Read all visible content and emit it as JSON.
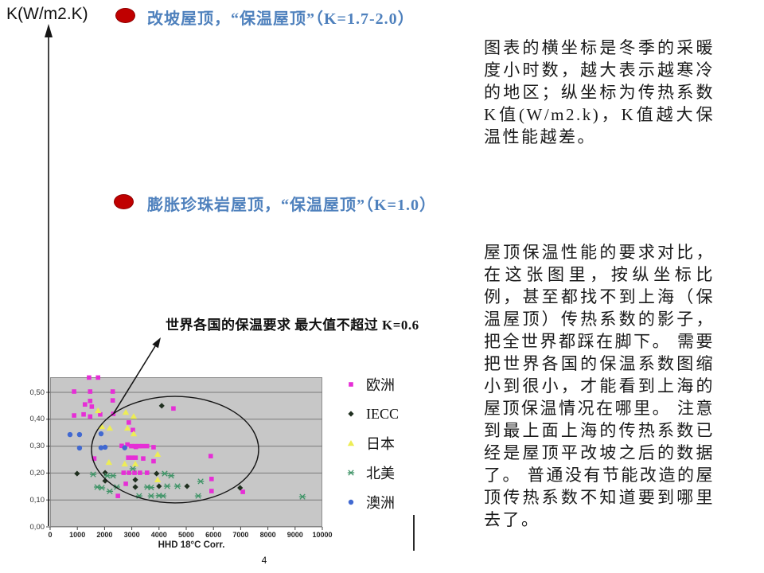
{
  "slide": {
    "page_number": "4",
    "y_axis_label": "K(W/m2.K)",
    "bullets": [
      {
        "text": "改坡屋顶，“保温屋顶”（K=1.7-2.0）",
        "k_value": "K=1.7-2.0"
      },
      {
        "text": "膨胀珍珠岩屋顶，“保温屋顶”（K=1.0）",
        "k_value": "K=1.0"
      }
    ],
    "right_column": {
      "paragraph1": "图表的横坐标是冬季的采暖度小时数，越大表示越寒冷的地区；纵坐标为传热系数K值(W/m2.k)，K值越大保温性能越差。",
      "paragraph2": "屋顶保温性能的要求对比，在这张图里，按纵坐标比例，甚至都找不到上海（保温屋顶）传热系数的影子，把全世界都踩在脚下。 需要把世界各国的保温系数图缩小到很小，才能看到上海的屋顶保温情况在哪里。 注意到最上面上海的传热系数已经是屋顶平改坡之后的数据了。 普通没有节能改造的屋顶传热系数不知道要到哪里去了。"
    },
    "colors": {
      "bullet_red": "#c00000",
      "heading_blue": "#4f81bd",
      "plot_background": "#c7c7c7",
      "gridline": "#7a7a7a"
    }
  },
  "chart_data": {
    "type": "scatter",
    "title": "",
    "xlabel": "HHD 18°C Corr.",
    "ylabel": "K(W/m2.K)",
    "xlim": [
      0,
      10000
    ],
    "ylim": [
      0.0,
      0.55
    ],
    "x_ticks": [
      0,
      1000,
      2000,
      3000,
      4000,
      5000,
      6000,
      7000,
      8000,
      9000,
      10000
    ],
    "y_tick_labels": [
      "0,00",
      "0,10",
      "0,20",
      "0,30",
      "0,40",
      "0,50"
    ],
    "grid": true,
    "legend_position": "right",
    "annotation_label": "世界各国的保温要求 最大值不超过 K=0.6",
    "annotations": [
      {
        "type": "ellipse",
        "center": [
          4590,
          0.287
        ],
        "rx": 3070,
        "ry": 0.198
      }
    ],
    "series": [
      {
        "name": "欧洲",
        "marker": "square",
        "color": "#e62ed6",
        "points": [
          [
            1430,
            0.555
          ],
          [
            1760,
            0.555
          ],
          [
            880,
            0.503
          ],
          [
            1470,
            0.503
          ],
          [
            2300,
            0.503
          ],
          [
            1280,
            0.455
          ],
          [
            1470,
            0.468
          ],
          [
            1530,
            0.447
          ],
          [
            2300,
            0.47
          ],
          [
            880,
            0.414
          ],
          [
            1230,
            0.418
          ],
          [
            1470,
            0.41
          ],
          [
            1840,
            0.418
          ],
          [
            2320,
            0.42
          ],
          [
            2890,
            0.388
          ],
          [
            3040,
            0.36
          ],
          [
            4530,
            0.44
          ],
          [
            2630,
            0.301
          ],
          [
            2840,
            0.306
          ],
          [
            2980,
            0.3
          ],
          [
            3120,
            0.3
          ],
          [
            3260,
            0.3
          ],
          [
            3400,
            0.3
          ],
          [
            3560,
            0.3
          ],
          [
            3150,
            0.297
          ],
          [
            3800,
            0.296
          ],
          [
            5900,
            0.263
          ],
          [
            1620,
            0.254
          ],
          [
            2870,
            0.257
          ],
          [
            3010,
            0.257
          ],
          [
            3140,
            0.257
          ],
          [
            3420,
            0.254
          ],
          [
            3800,
            0.244
          ],
          [
            2700,
            0.201
          ],
          [
            2900,
            0.201
          ],
          [
            3100,
            0.201
          ],
          [
            3300,
            0.201
          ],
          [
            3560,
            0.201
          ],
          [
            2780,
            0.16
          ],
          [
            2490,
            0.115
          ],
          [
            5930,
            0.178
          ],
          [
            5930,
            0.133
          ],
          [
            7080,
            0.13
          ]
        ]
      },
      {
        "name": "IECC",
        "marker": "diamond",
        "color": "#203020",
        "points": [
          [
            990,
            0.198
          ],
          [
            2020,
            0.201
          ],
          [
            2020,
            0.171
          ],
          [
            3130,
            0.175
          ],
          [
            3130,
            0.148
          ],
          [
            3910,
            0.198
          ],
          [
            4000,
            0.151
          ],
          [
            5030,
            0.151
          ],
          [
            6980,
            0.145
          ],
          [
            4100,
            0.45
          ]
        ]
      },
      {
        "name": "日本",
        "marker": "triangle",
        "color": "#eded55",
        "points": [
          [
            1760,
            0.432
          ],
          [
            2780,
            0.426
          ],
          [
            3070,
            0.411
          ],
          [
            1900,
            0.373
          ],
          [
            2190,
            0.367
          ],
          [
            2840,
            0.367
          ],
          [
            3070,
            0.346
          ],
          [
            3950,
            0.27
          ],
          [
            2160,
            0.24
          ],
          [
            2740,
            0.234
          ],
          [
            3130,
            0.234
          ],
          [
            3950,
            0.175
          ]
        ]
      },
      {
        "name": "北美",
        "marker": "x",
        "color": "#3f9467",
        "points": [
          [
            3040,
            0.216
          ],
          [
            1580,
            0.195
          ],
          [
            2100,
            0.19
          ],
          [
            2310,
            0.19
          ],
          [
            4210,
            0.198
          ],
          [
            4445,
            0.19
          ],
          [
            1730,
            0.148
          ],
          [
            1900,
            0.145
          ],
          [
            2450,
            0.148
          ],
          [
            3570,
            0.148
          ],
          [
            3710,
            0.146
          ],
          [
            4300,
            0.151
          ],
          [
            4680,
            0.151
          ],
          [
            2190,
            0.132
          ],
          [
            3270,
            0.115
          ],
          [
            3710,
            0.115
          ],
          [
            4000,
            0.116
          ],
          [
            4150,
            0.115
          ],
          [
            5530,
            0.169
          ],
          [
            5440,
            0.115
          ],
          [
            9270,
            0.112
          ]
        ]
      },
      {
        "name": "澳洲",
        "marker": "circle",
        "color": "#4169d1",
        "points": [
          [
            730,
            0.343
          ],
          [
            1080,
            0.343
          ],
          [
            1870,
            0.346
          ],
          [
            2020,
            0.296
          ],
          [
            1080,
            0.293
          ],
          [
            1870,
            0.294
          ],
          [
            2740,
            0.294
          ]
        ]
      }
    ]
  }
}
